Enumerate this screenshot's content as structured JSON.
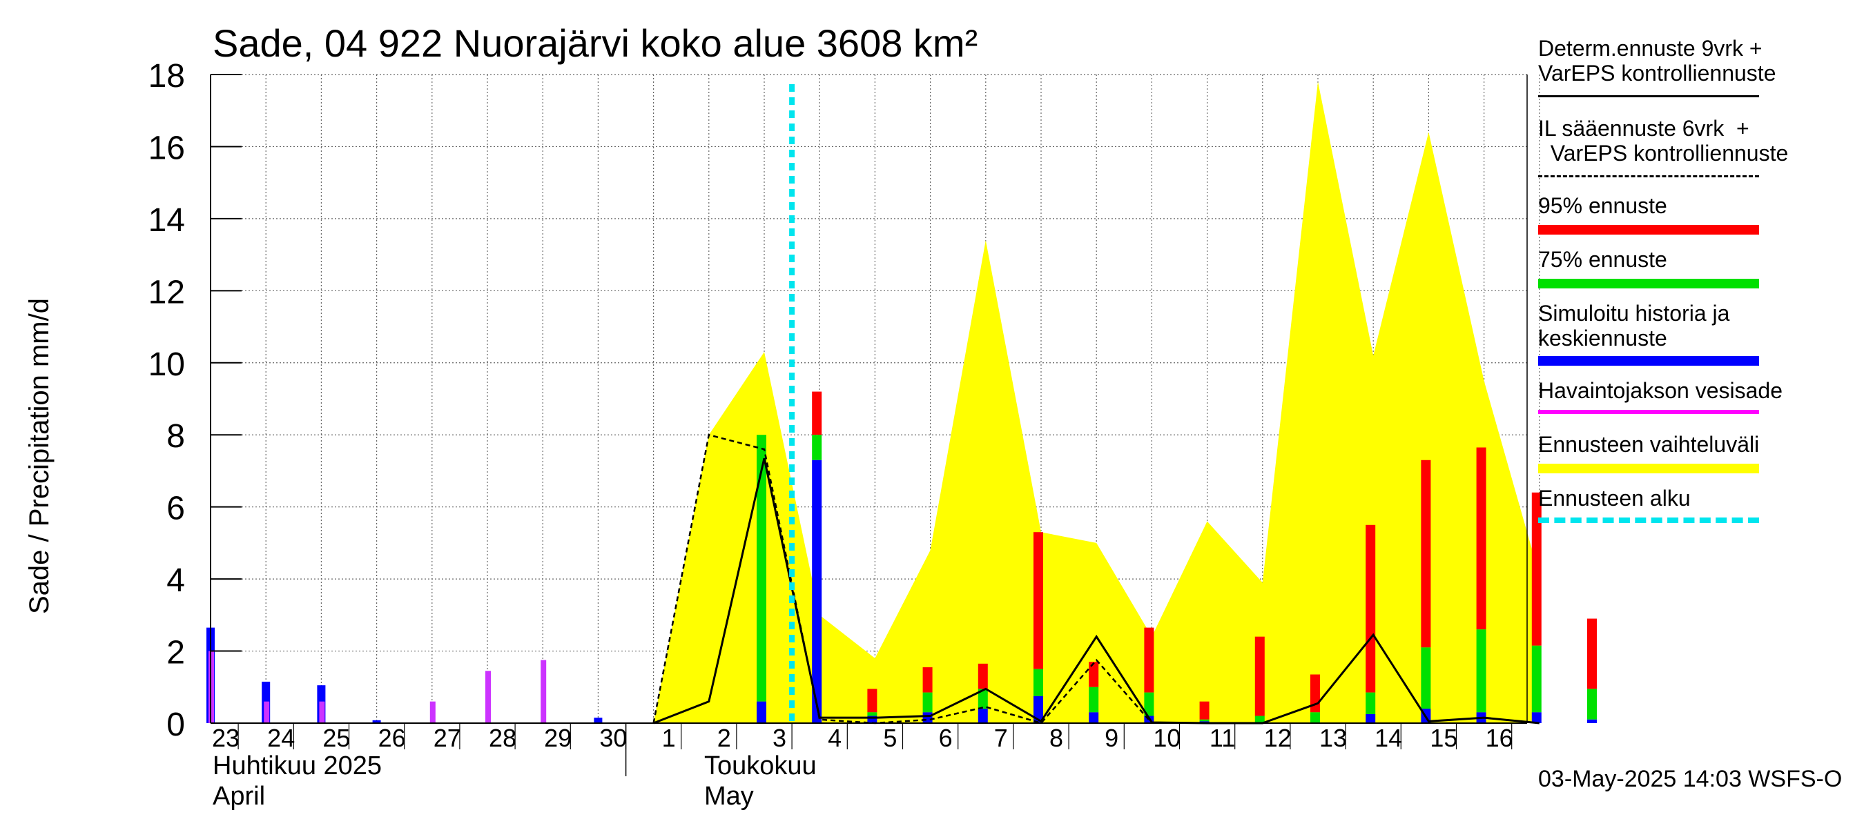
{
  "title": "Sade, 04 922 Nuorajärvi koko alue 3608 km²",
  "y_axis_label": "Sade / Precipitation   mm/d",
  "months": [
    {
      "fi": "Huhtikuu  2025",
      "en": "April"
    },
    {
      "fi": "Toukokuu",
      "en": "May"
    }
  ],
  "footer": "03-May-2025 14:03 WSFS-O",
  "legend": [
    {
      "text": "Determ.ennuste 9vrk +\nVarEPS kontrolliennuste",
      "color": "#000000",
      "style": "solid"
    },
    {
      "text": "IL sääennuste 6vrk  +\n  VarEPS kontrolliennuste",
      "color": "#000000",
      "style": "dashed"
    },
    {
      "text": "95% ennuste",
      "color": "#ff0000",
      "style": "bar"
    },
    {
      "text": "75% ennuste",
      "color": "#00e000",
      "style": "bar"
    },
    {
      "text": "Simuloitu historia ja\nkeskiennuste",
      "color": "#0000ff",
      "style": "bar"
    },
    {
      "text": "Havaintojakson vesisade",
      "color": "#ff00ff",
      "style": "thin"
    },
    {
      "text": "Ennusteen vaihteluväli",
      "color": "#ffff00",
      "style": "bar"
    },
    {
      "text": "Ennusteen alku",
      "color": "#00e5ee",
      "style": "dotted"
    }
  ],
  "chart_data": {
    "type": "bar",
    "title": "Sade, 04 922 Nuorajärvi koko alue 3608 km²",
    "ylabel": "Sade / Precipitation   mm/d",
    "ylim": [
      0,
      18
    ],
    "yticks": [
      0,
      2,
      4,
      6,
      8,
      10,
      12,
      14,
      16,
      18
    ],
    "x_labels": [
      "23",
      "24",
      "25",
      "26",
      "27",
      "28",
      "29",
      "30",
      "1",
      "2",
      "3",
      "4",
      "5",
      "6",
      "7",
      "8",
      "9",
      "10",
      "11",
      "12",
      "13",
      "14",
      "15",
      "16"
    ],
    "forecast_start_x": 10.5,
    "observed_precipitation": [
      {
        "x": 0,
        "value": 2.0
      },
      {
        "x": 1,
        "value": 0.6
      },
      {
        "x": 2,
        "value": 0.6
      },
      {
        "x": 4,
        "value": 0.6
      },
      {
        "x": 5,
        "value": 1.45
      },
      {
        "x": 6,
        "value": 1.75
      }
    ],
    "simulated_history": [
      {
        "x": 0,
        "value": 2.65
      },
      {
        "x": 1,
        "value": 1.15
      },
      {
        "x": 2,
        "value": 1.05
      },
      {
        "x": 3,
        "value": 0.08
      },
      {
        "x": 7,
        "value": 0.15
      }
    ],
    "forecast_bars": [
      {
        "x": 9.95,
        "mean": 0.6,
        "p75": 8.0,
        "p95": 8.0
      },
      {
        "x": 10.95,
        "mean": 7.3,
        "p75": 8.0,
        "p95": 9.2
      },
      {
        "x": 11.95,
        "mean": 0.2,
        "p75": 0.3,
        "p95": 0.95
      },
      {
        "x": 12.95,
        "mean": 0.3,
        "p75": 0.85,
        "p95": 1.55
      },
      {
        "x": 13.95,
        "mean": 0.4,
        "p75": 0.95,
        "p95": 1.65
      },
      {
        "x": 14.95,
        "mean": 0.75,
        "p75": 1.5,
        "p95": 5.3
      },
      {
        "x": 15.95,
        "mean": 0.3,
        "p75": 1.0,
        "p95": 1.7
      },
      {
        "x": 16.95,
        "mean": 0.2,
        "p75": 0.85,
        "p95": 2.65
      },
      {
        "x": 17.95,
        "mean": 0.05,
        "p75": 0.1,
        "p95": 0.6
      },
      {
        "x": 18.95,
        "mean": 0.0,
        "p75": 0.2,
        "p95": 2.4
      },
      {
        "x": 19.95,
        "mean": 0.0,
        "p75": 0.3,
        "p95": 1.35
      },
      {
        "x": 20.95,
        "mean": 0.25,
        "p75": 0.85,
        "p95": 5.5
      },
      {
        "x": 21.95,
        "mean": 0.4,
        "p75": 2.1,
        "p95": 7.3
      },
      {
        "x": 22.95,
        "mean": 0.3,
        "p75": 2.6,
        "p95": 7.65
      },
      {
        "x": 23.95,
        "mean": 0.3,
        "p75": 2.15,
        "p95": 6.4
      },
      {
        "x": 24.95,
        "mean": 0.1,
        "p75": 0.95,
        "p95": 2.9
      }
    ],
    "forecast_range": [
      {
        "x": 8.0,
        "lo": 0,
        "hi": 0
      },
      {
        "x": 9.0,
        "lo": 0,
        "hi": 8.0
      },
      {
        "x": 10.0,
        "lo": 0,
        "hi": 10.3
      },
      {
        "x": 11.0,
        "lo": 0,
        "hi": 3.0
      },
      {
        "x": 12.0,
        "lo": 0,
        "hi": 1.8
      },
      {
        "x": 13.0,
        "lo": 0,
        "hi": 4.8
      },
      {
        "x": 14.0,
        "lo": 0,
        "hi": 13.4
      },
      {
        "x": 15.0,
        "lo": 0,
        "hi": 5.3
      },
      {
        "x": 16.0,
        "lo": 0,
        "hi": 5.0
      },
      {
        "x": 17.0,
        "lo": 0,
        "hi": 2.4
      },
      {
        "x": 18.0,
        "lo": 0,
        "hi": 5.6
      },
      {
        "x": 19.0,
        "lo": 0,
        "hi": 3.9
      },
      {
        "x": 20.0,
        "lo": 0,
        "hi": 17.8
      },
      {
        "x": 21.0,
        "lo": 0,
        "hi": 10.2
      },
      {
        "x": 22.0,
        "lo": 0,
        "hi": 16.4
      },
      {
        "x": 23.0,
        "lo": 0,
        "hi": 9.5
      },
      {
        "x": 24.0,
        "lo": 0,
        "hi": 4.1
      }
    ],
    "deterministic_line": [
      {
        "x": 8.0,
        "value": 0.0
      },
      {
        "x": 9.0,
        "value": 0.6
      },
      {
        "x": 10.0,
        "value": 7.35
      },
      {
        "x": 11.0,
        "value": 0.15
      },
      {
        "x": 12.0,
        "value": 0.15
      },
      {
        "x": 13.0,
        "value": 0.2
      },
      {
        "x": 14.0,
        "value": 0.95
      },
      {
        "x": 15.0,
        "value": 0.05
      },
      {
        "x": 16.0,
        "value": 2.4
      },
      {
        "x": 17.0,
        "value": 0.02
      },
      {
        "x": 18.0,
        "value": 0.0
      },
      {
        "x": 19.0,
        "value": 0.0
      },
      {
        "x": 20.0,
        "value": 0.55
      },
      {
        "x": 21.0,
        "value": 2.45
      },
      {
        "x": 22.0,
        "value": 0.05
      },
      {
        "x": 23.0,
        "value": 0.15
      },
      {
        "x": 24.0,
        "value": 0.0
      }
    ],
    "il_line": [
      {
        "x": 8.0,
        "value": 0.0
      },
      {
        "x": 9.0,
        "value": 8.0
      },
      {
        "x": 10.0,
        "value": 7.6
      },
      {
        "x": 11.0,
        "value": 0.1
      },
      {
        "x": 12.0,
        "value": 0.0
      },
      {
        "x": 13.0,
        "value": 0.1
      },
      {
        "x": 14.0,
        "value": 0.45
      },
      {
        "x": 15.0,
        "value": 0.0
      },
      {
        "x": 16.0,
        "value": 1.75
      },
      {
        "x": 17.0,
        "value": 0.0
      }
    ]
  }
}
